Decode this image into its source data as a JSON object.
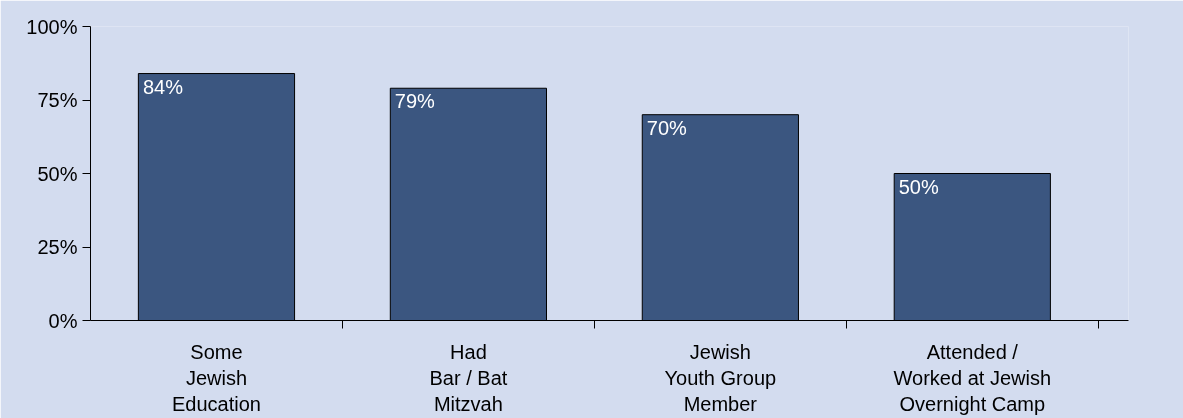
{
  "chart_data": {
    "type": "bar",
    "categories": [
      "Some\nJewish\nEducation",
      "Had\nBar / Bat\nMitzvah",
      "Jewish\nYouth Group\nMember",
      "Attended /\nWorked at Jewish\nOvernight Camp"
    ],
    "values": [
      84,
      79,
      70,
      50
    ],
    "value_labels": [
      "84%",
      "79%",
      "70%",
      "50%"
    ],
    "color": "#3b5680",
    "ylim": [
      0,
      100
    ],
    "yticks": [
      {
        "value": 0,
        "label": "0%"
      },
      {
        "value": 25,
        "label": "25%"
      },
      {
        "value": 50,
        "label": "50%"
      },
      {
        "value": 75,
        "label": "75%"
      },
      {
        "value": 100,
        "label": "100%"
      }
    ],
    "grid": false
  }
}
